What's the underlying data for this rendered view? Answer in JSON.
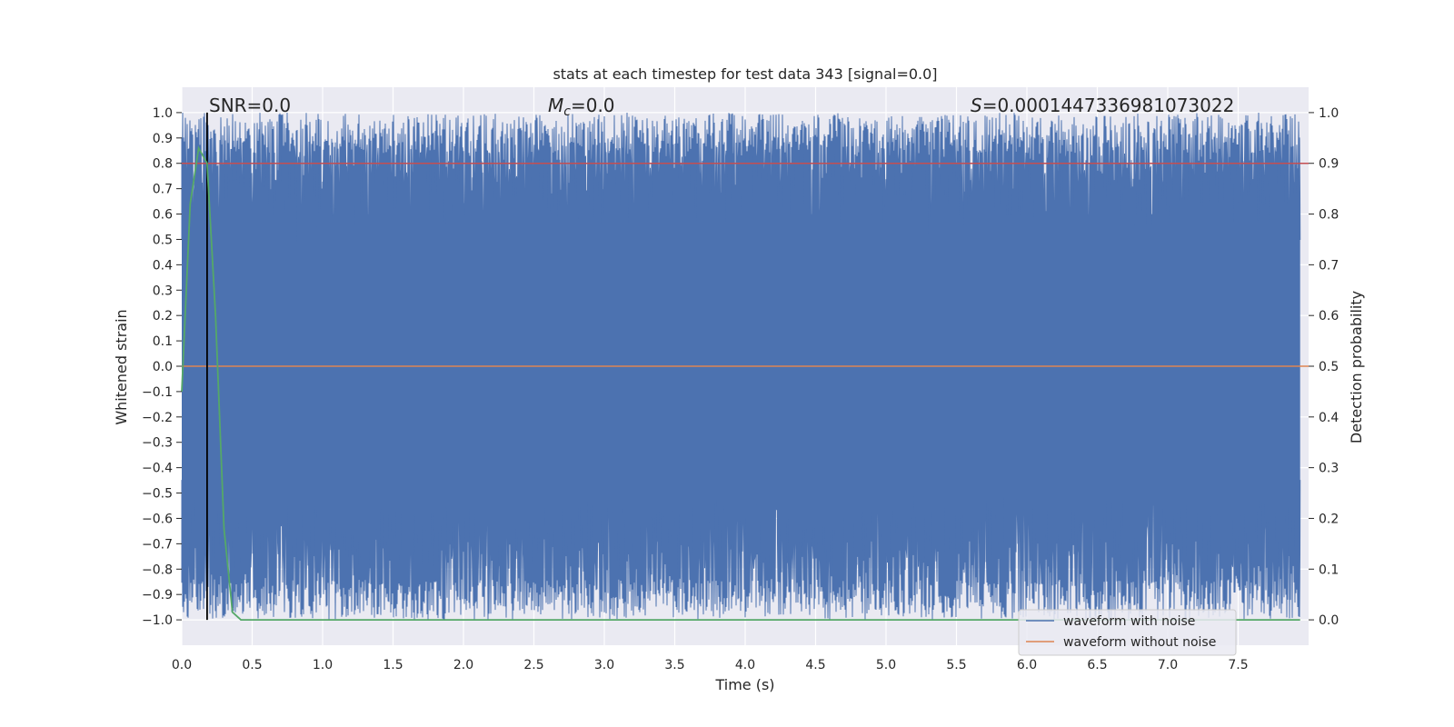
{
  "chart_data": {
    "type": "line",
    "title": "stats at each timestep for test data 343 [signal=0.0]",
    "xlabel": "Time (s)",
    "ylabel": "Whitened strain",
    "y2label": "Detection probability",
    "xlim": [
      0.0,
      8.0
    ],
    "ylim": [
      -1.1,
      1.1
    ],
    "y2lim": [
      -0.05,
      1.05
    ],
    "x_ticks": [
      "0.0",
      "0.5",
      "1.0",
      "1.5",
      "2.0",
      "2.5",
      "3.0",
      "3.5",
      "4.0",
      "4.5",
      "5.0",
      "5.5",
      "6.0",
      "6.5",
      "7.0",
      "7.5"
    ],
    "y_ticks": [
      "1.0",
      "0.9",
      "0.8",
      "0.7",
      "0.6",
      "0.5",
      "0.4",
      "0.3",
      "0.2",
      "0.1",
      "0.0",
      "−0.1",
      "−0.2",
      "−0.3",
      "−0.4",
      "−0.5",
      "−0.6",
      "−0.7",
      "−0.8",
      "−0.9",
      "−1.0"
    ],
    "y2_ticks": [
      "1.0",
      "0.9",
      "0.8",
      "0.7",
      "0.6",
      "0.5",
      "0.4",
      "0.3",
      "0.2",
      "0.1",
      "0.0"
    ],
    "grid": true,
    "legend_position": "bottom-right",
    "annotations": {
      "snr": "SNR=0.0",
      "mc_symbol": "M",
      "mc_sub": "c",
      "mc_value": "=0.0",
      "s_symbol": "S",
      "s_value": "=0.0001447336981073022"
    },
    "vertical_marker_x": 0.18,
    "threshold_y2": 0.9,
    "series": [
      {
        "name": "waveform with noise",
        "color": "#4c72b0",
        "range": [
          -1.0,
          1.0
        ],
        "description_samples": "dense noise"
      },
      {
        "name": "waveform without noise",
        "color": "#dd8452",
        "values_constant": 0.0
      }
    ],
    "detection_probability": {
      "color": "#55a868",
      "x": [
        0.0,
        0.06,
        0.12,
        0.18,
        0.24,
        0.3,
        0.36,
        0.42,
        1.0,
        2.0,
        3.0,
        4.0,
        5.0,
        6.0,
        7.0,
        7.94
      ],
      "y": [
        0.45,
        0.82,
        0.93,
        0.9,
        0.6,
        0.18,
        0.015,
        0.0,
        0.0,
        0.0,
        0.0,
        0.0,
        0.0,
        0.0,
        0.0,
        0.0
      ]
    },
    "threshold_color": "#c44e52"
  }
}
